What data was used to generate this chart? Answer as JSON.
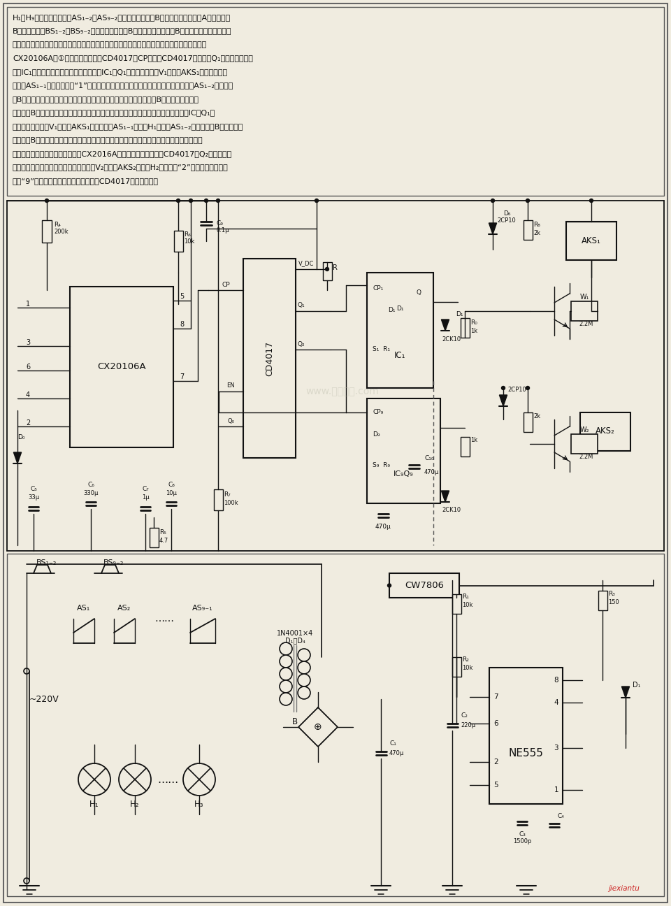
{
  "figsize": [
    9.6,
    12.96
  ],
  "dpi": 100,
  "bg": "#e8e4d8",
  "fg": "#1a1008",
  "page_bg": "#f0ece0",
  "text_lines": [
    "H₁～H₉不亮；第二组触点AS₁₋₂～AS₉₋₂（此组触点串接在B组电路中，和串接在A组电路中的",
    "B组继电器触点BS₁₋₂～BS₉₋₂相同）闭合，接通B组电路工作电源，使B组电路也处于等待状态。",
    "假设有一辆车从甲方洞口进入隙道开往乙方，车进洞口时，挡了一下红外光线，在挡住的瞬间，",
    "CX20106A的①输出高电平，并经CD4017的CP端触发CD4017使其他的Q₁端输出高电平，",
    "触发IC₁，使定时自动开关电路开始工作。IC₁的Q₁端输出高电平，V₁导通，AKS₁吸合，其第一",
    "对触点AS₁₋₁闭合，显示出“1”字，表示从甲方洞口有一辆车进入隙道。第二对触点AS₁₋₂断开，切",
    "断B组电路工作电源，使从甲方洞口开过来的车经过设置在乙方洞口的B组电路中的红外线",
    "探头时，B组电路不工作。定时自动开关电路定时一段时间后（即车出乙方洞口后），IC的Q₁端",
    "输出变为低电平，V₁截止，AKS₁释放，触点AS₁₋₁断开，H₁息灬；AS₁₋₂闭合，接通B组电路工作",
    "电源，使B组电路又进入等待状态。当从甲方洞口进入的第一辆车还未出乙方洞口时，又有一",
    "辆车从甲方洞口进入隙道，此时，CX2016A又输出一正触发脉冲，CD4017的Q₂端输出高电",
    "平，第二路定时自动开关电路开始工作，V₂导通，AKS₂吸合，H₂点亮显示“2”字。本系统最多可",
    "显示“9”字，如要求扩展时，可使用几块CD4017。（摩光动）"
  ]
}
